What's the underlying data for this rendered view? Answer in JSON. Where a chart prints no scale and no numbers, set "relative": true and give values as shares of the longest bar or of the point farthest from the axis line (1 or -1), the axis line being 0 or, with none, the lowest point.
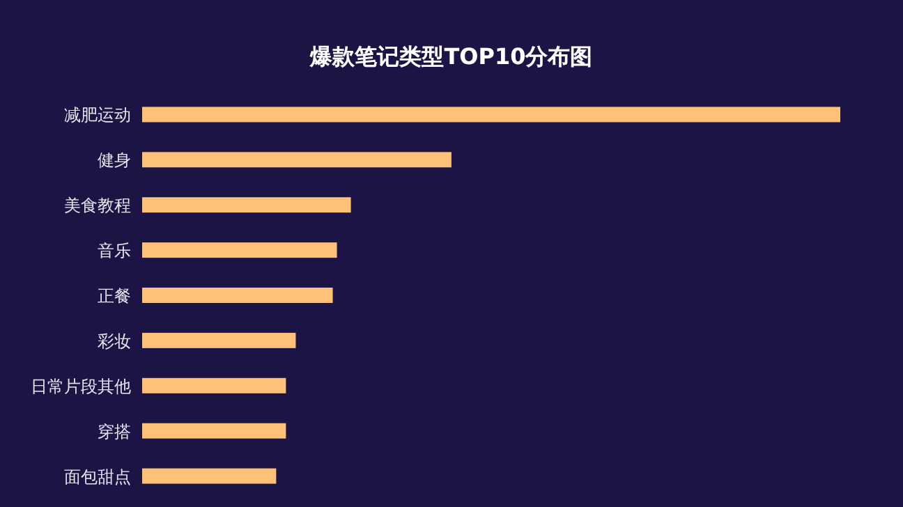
{
  "chart_data": {
    "type": "bar",
    "orientation": "horizontal",
    "relative": true,
    "title": "爆款笔记类型TOP10分布图",
    "categories": [
      "减肥运动",
      "健身",
      "美食教程",
      "音乐",
      "正餐",
      "彩妆",
      "日常片段其他",
      "穿搭",
      "面包甜点"
    ],
    "values": [
      1,
      0.443,
      0.299,
      0.279,
      0.273,
      0.22,
      0.206,
      0.206,
      0.192
    ],
    "color": "#ffc078"
  }
}
